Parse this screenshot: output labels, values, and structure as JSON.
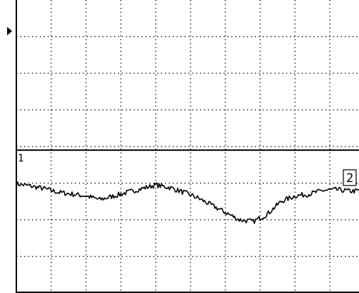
{
  "chart_data": {
    "type": "line",
    "grid": true,
    "x_divisions": 10,
    "y_divisions": 8,
    "x_range": [
      0,
      10
    ],
    "y_range": [
      0,
      8
    ],
    "series": [
      {
        "id": "ch1",
        "marker": "1",
        "shape": "flat",
        "level": 3.9
      },
      {
        "id": "ch2",
        "marker": "2",
        "shape": "noisy",
        "x": [
          0.0,
          0.4,
          0.8,
          1.2,
          1.6,
          2.0,
          2.4,
          2.8,
          3.2,
          3.6,
          4.0,
          4.4,
          4.8,
          5.2,
          5.6,
          6.0,
          6.4,
          6.8,
          7.2,
          7.6,
          8.0,
          8.4,
          8.8,
          9.2,
          9.6,
          10.0
        ],
        "y": [
          2.98,
          2.92,
          2.85,
          2.75,
          2.7,
          2.65,
          2.55,
          2.65,
          2.75,
          2.85,
          2.95,
          2.88,
          2.75,
          2.6,
          2.4,
          2.2,
          2.0,
          1.95,
          2.15,
          2.5,
          2.65,
          2.7,
          2.8,
          2.82,
          2.78,
          2.8
        ]
      }
    ],
    "trigger_marker": {
      "level": 7.15
    },
    "colors": {
      "background": "#ffffff",
      "ink": "#000000"
    }
  }
}
